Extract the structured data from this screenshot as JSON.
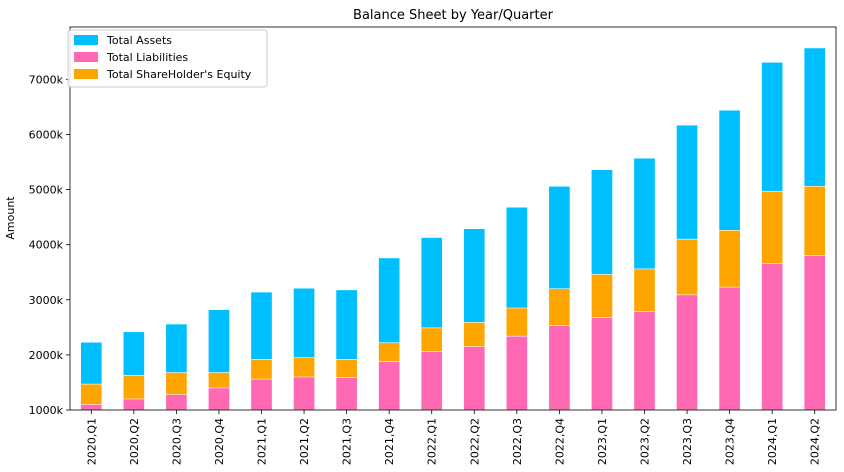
{
  "chart_data": {
    "type": "bar",
    "stacked": false,
    "title": "Balance Sheet by Year/Quarter",
    "xlabel": "",
    "ylabel": "Amount",
    "ylim": [
      1000,
      7950
    ],
    "yticks": [
      1000,
      2000,
      3000,
      4000,
      5000,
      6000,
      7000
    ],
    "ytick_labels": [
      "1000k",
      "2000k",
      "3000k",
      "4000k",
      "5000k",
      "6000k",
      "7000k"
    ],
    "y_unit": "k",
    "grid": false,
    "legend_position": "top-left",
    "categories": [
      "2020,Q1",
      "2020,Q2",
      "2020,Q3",
      "2020,Q4",
      "2021,Q1",
      "2021,Q2",
      "2021,Q3",
      "2021,Q4",
      "2022,Q1",
      "2022,Q2",
      "2022,Q3",
      "2022,Q4",
      "2023,Q1",
      "2023,Q2",
      "2023,Q3",
      "2023,Q4",
      "2024,Q1",
      "2024,Q2"
    ],
    "series": [
      {
        "name": "Total Assets",
        "color": "#00BFFF",
        "values": [
          2230,
          2420,
          2560,
          2820,
          3140,
          3210,
          3180,
          3760,
          4130,
          4290,
          4680,
          5060,
          5360,
          5570,
          6170,
          6440,
          7310,
          7570
        ]
      },
      {
        "name": "Total ShareHolder's Equity",
        "color": "#FFA500",
        "values": [
          1470,
          1630,
          1680,
          1680,
          1920,
          1950,
          1920,
          2220,
          2490,
          2590,
          2850,
          3200,
          3460,
          3560,
          4100,
          4260,
          4970,
          5060
        ]
      },
      {
        "name": "Total Liabilities",
        "color": "#FF69B4",
        "values": [
          1100,
          1200,
          1280,
          1400,
          1560,
          1600,
          1590,
          1880,
          2060,
          2150,
          2340,
          2530,
          2680,
          2790,
          3090,
          3230,
          3660,
          3800
        ]
      }
    ],
    "legend_order": [
      "Total Assets",
      "Total Liabilities",
      "Total ShareHolder's Equity"
    ]
  }
}
